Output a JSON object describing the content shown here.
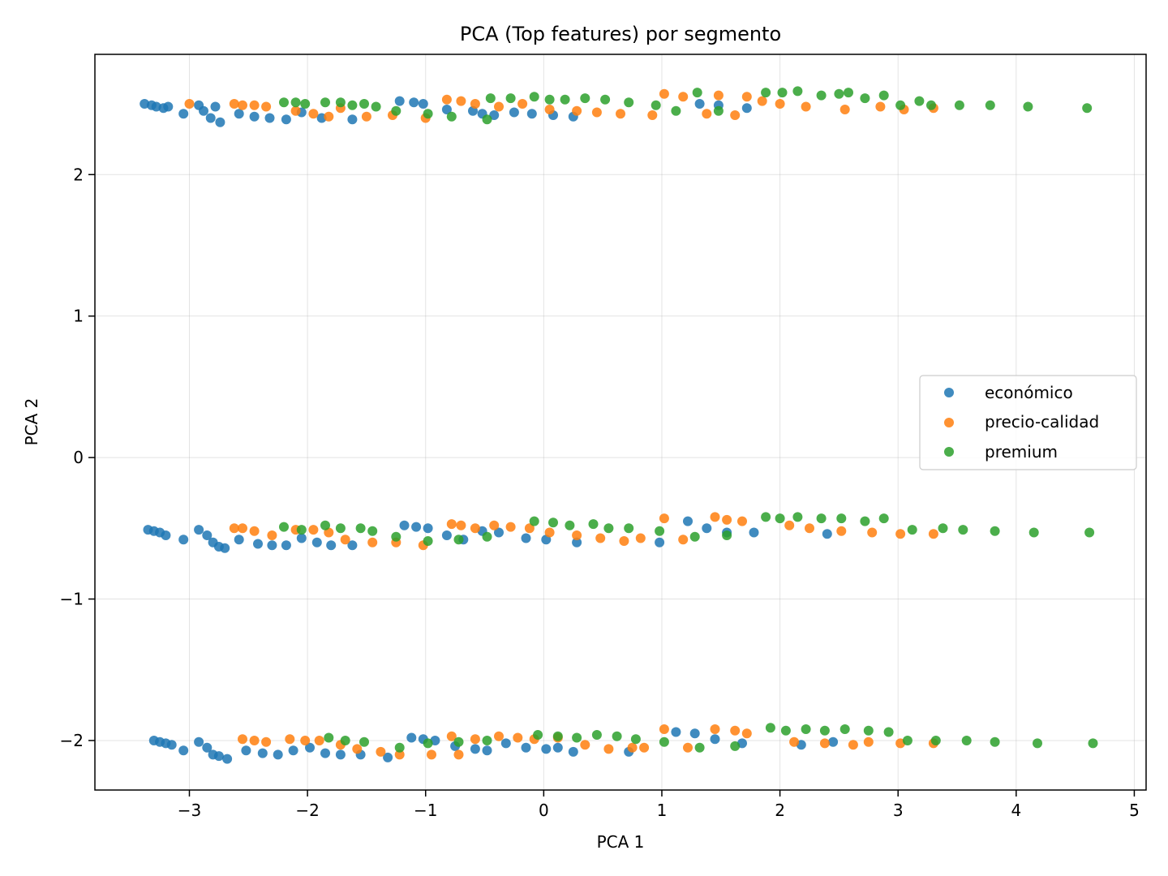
{
  "chart_data": {
    "type": "scatter",
    "title": "PCA (Top features) por segmento",
    "xlabel": "PCA 1",
    "ylabel": "PCA 2",
    "xlim": [
      -3.8,
      5.1
    ],
    "ylim": [
      -2.35,
      2.85
    ],
    "x_ticks": [
      -3,
      -2,
      -1,
      0,
      1,
      2,
      3,
      4,
      5
    ],
    "y_ticks": [
      -2,
      -1,
      0,
      1,
      2
    ],
    "x_tick_labels": [
      "−3",
      "−2",
      "−1",
      "0",
      "1",
      "2",
      "3",
      "4",
      "5"
    ],
    "y_tick_labels": [
      "−2",
      "−1",
      "0",
      "1",
      "2"
    ],
    "grid": true,
    "legend_position": "center-right",
    "series": [
      {
        "name": "económico",
        "color": "#1f77b4",
        "points": [
          [
            -3.38,
            2.5
          ],
          [
            -3.32,
            2.49
          ],
          [
            -3.28,
            2.48
          ],
          [
            -3.22,
            2.47
          ],
          [
            -3.18,
            2.48
          ],
          [
            -3.05,
            2.43
          ],
          [
            -2.92,
            2.49
          ],
          [
            -2.88,
            2.45
          ],
          [
            -2.82,
            2.4
          ],
          [
            -2.78,
            2.48
          ],
          [
            -2.74,
            2.37
          ],
          [
            -2.58,
            2.43
          ],
          [
            -2.45,
            2.41
          ],
          [
            -2.32,
            2.4
          ],
          [
            -2.18,
            2.39
          ],
          [
            -2.05,
            2.44
          ],
          [
            -1.88,
            2.4
          ],
          [
            -1.62,
            2.39
          ],
          [
            -1.22,
            2.52
          ],
          [
            -1.1,
            2.51
          ],
          [
            -1.02,
            2.5
          ],
          [
            -0.82,
            2.46
          ],
          [
            -0.6,
            2.45
          ],
          [
            -0.52,
            2.43
          ],
          [
            -0.42,
            2.42
          ],
          [
            -0.25,
            2.44
          ],
          [
            -0.1,
            2.43
          ],
          [
            0.08,
            2.42
          ],
          [
            0.25,
            2.41
          ],
          [
            1.32,
            2.5
          ],
          [
            1.48,
            2.49
          ],
          [
            1.72,
            2.47
          ],
          [
            -3.35,
            -0.51
          ],
          [
            -3.3,
            -0.52
          ],
          [
            -3.25,
            -0.53
          ],
          [
            -3.2,
            -0.55
          ],
          [
            -3.05,
            -0.58
          ],
          [
            -2.92,
            -0.51
          ],
          [
            -2.85,
            -0.55
          ],
          [
            -2.8,
            -0.6
          ],
          [
            -2.75,
            -0.63
          ],
          [
            -2.7,
            -0.64
          ],
          [
            -2.58,
            -0.58
          ],
          [
            -2.42,
            -0.61
          ],
          [
            -2.3,
            -0.62
          ],
          [
            -2.18,
            -0.62
          ],
          [
            -2.05,
            -0.57
          ],
          [
            -1.92,
            -0.6
          ],
          [
            -1.8,
            -0.62
          ],
          [
            -1.62,
            -0.62
          ],
          [
            -1.18,
            -0.48
          ],
          [
            -1.08,
            -0.49
          ],
          [
            -0.98,
            -0.5
          ],
          [
            -0.82,
            -0.55
          ],
          [
            -0.68,
            -0.58
          ],
          [
            -0.52,
            -0.52
          ],
          [
            -0.38,
            -0.53
          ],
          [
            -0.15,
            -0.57
          ],
          [
            0.02,
            -0.58
          ],
          [
            0.28,
            -0.6
          ],
          [
            0.98,
            -0.6
          ],
          [
            1.22,
            -0.45
          ],
          [
            1.38,
            -0.5
          ],
          [
            1.55,
            -0.53
          ],
          [
            1.78,
            -0.53
          ],
          [
            2.4,
            -0.54
          ],
          [
            -3.3,
            -2.0
          ],
          [
            -3.25,
            -2.01
          ],
          [
            -3.2,
            -2.02
          ],
          [
            -3.15,
            -2.03
          ],
          [
            -3.05,
            -2.07
          ],
          [
            -2.92,
            -2.01
          ],
          [
            -2.85,
            -2.05
          ],
          [
            -2.8,
            -2.1
          ],
          [
            -2.75,
            -2.11
          ],
          [
            -2.68,
            -2.13
          ],
          [
            -2.52,
            -2.07
          ],
          [
            -2.38,
            -2.09
          ],
          [
            -2.25,
            -2.1
          ],
          [
            -2.12,
            -2.07
          ],
          [
            -1.98,
            -2.05
          ],
          [
            -1.85,
            -2.09
          ],
          [
            -1.72,
            -2.1
          ],
          [
            -1.55,
            -2.1
          ],
          [
            -1.32,
            -2.12
          ],
          [
            -1.12,
            -1.98
          ],
          [
            -1.02,
            -1.99
          ],
          [
            -0.92,
            -2.0
          ],
          [
            -0.75,
            -2.04
          ],
          [
            -0.58,
            -2.06
          ],
          [
            -0.48,
            -2.07
          ],
          [
            -0.32,
            -2.02
          ],
          [
            -0.15,
            -2.05
          ],
          [
            0.02,
            -2.06
          ],
          [
            0.12,
            -2.05
          ],
          [
            0.25,
            -2.08
          ],
          [
            0.72,
            -2.08
          ],
          [
            1.12,
            -1.94
          ],
          [
            1.28,
            -1.95
          ],
          [
            1.45,
            -1.99
          ],
          [
            1.68,
            -2.02
          ],
          [
            2.18,
            -2.03
          ],
          [
            2.45,
            -2.01
          ]
        ]
      },
      {
        "name": "precio-calidad",
        "color": "#ff7f0e",
        "points": [
          [
            -3.0,
            2.5
          ],
          [
            -2.62,
            2.5
          ],
          [
            -2.55,
            2.49
          ],
          [
            -2.45,
            2.49
          ],
          [
            -2.35,
            2.48
          ],
          [
            -2.1,
            2.45
          ],
          [
            -1.95,
            2.43
          ],
          [
            -1.82,
            2.41
          ],
          [
            -1.72,
            2.47
          ],
          [
            -1.5,
            2.41
          ],
          [
            -1.28,
            2.42
          ],
          [
            -1.0,
            2.4
          ],
          [
            -0.82,
            2.53
          ],
          [
            -0.7,
            2.52
          ],
          [
            -0.58,
            2.5
          ],
          [
            -0.38,
            2.48
          ],
          [
            -0.18,
            2.5
          ],
          [
            0.05,
            2.46
          ],
          [
            0.28,
            2.45
          ],
          [
            0.45,
            2.44
          ],
          [
            0.65,
            2.43
          ],
          [
            0.92,
            2.42
          ],
          [
            1.02,
            2.57
          ],
          [
            1.18,
            2.55
          ],
          [
            1.38,
            2.43
          ],
          [
            1.48,
            2.56
          ],
          [
            1.62,
            2.42
          ],
          [
            1.72,
            2.55
          ],
          [
            1.85,
            2.52
          ],
          [
            2.0,
            2.5
          ],
          [
            2.22,
            2.48
          ],
          [
            2.55,
            2.46
          ],
          [
            2.85,
            2.48
          ],
          [
            3.05,
            2.46
          ],
          [
            3.3,
            2.47
          ],
          [
            -2.62,
            -0.5
          ],
          [
            -2.55,
            -0.5
          ],
          [
            -2.45,
            -0.52
          ],
          [
            -2.3,
            -0.55
          ],
          [
            -2.1,
            -0.51
          ],
          [
            -1.95,
            -0.51
          ],
          [
            -1.82,
            -0.53
          ],
          [
            -1.68,
            -0.58
          ],
          [
            -1.45,
            -0.6
          ],
          [
            -1.25,
            -0.6
          ],
          [
            -1.02,
            -0.62
          ],
          [
            -0.78,
            -0.47
          ],
          [
            -0.7,
            -0.48
          ],
          [
            -0.58,
            -0.5
          ],
          [
            -0.42,
            -0.48
          ],
          [
            -0.28,
            -0.49
          ],
          [
            -0.12,
            -0.5
          ],
          [
            0.05,
            -0.53
          ],
          [
            0.28,
            -0.55
          ],
          [
            0.48,
            -0.57
          ],
          [
            0.68,
            -0.59
          ],
          [
            0.82,
            -0.57
          ],
          [
            1.02,
            -0.43
          ],
          [
            1.18,
            -0.58
          ],
          [
            1.45,
            -0.42
          ],
          [
            1.55,
            -0.44
          ],
          [
            1.68,
            -0.45
          ],
          [
            2.08,
            -0.48
          ],
          [
            2.25,
            -0.5
          ],
          [
            2.52,
            -0.52
          ],
          [
            2.78,
            -0.53
          ],
          [
            3.02,
            -0.54
          ],
          [
            3.3,
            -0.54
          ],
          [
            -2.55,
            -1.99
          ],
          [
            -2.45,
            -2.0
          ],
          [
            -2.35,
            -2.01
          ],
          [
            -2.15,
            -1.99
          ],
          [
            -2.02,
            -2.0
          ],
          [
            -1.9,
            -2.0
          ],
          [
            -1.72,
            -2.03
          ],
          [
            -1.58,
            -2.06
          ],
          [
            -1.38,
            -2.08
          ],
          [
            -1.22,
            -2.1
          ],
          [
            -0.95,
            -2.1
          ],
          [
            -0.78,
            -1.97
          ],
          [
            -0.72,
            -2.1
          ],
          [
            -0.58,
            -1.99
          ],
          [
            -0.38,
            -1.97
          ],
          [
            -0.22,
            -1.98
          ],
          [
            -0.08,
            -1.99
          ],
          [
            0.12,
            -1.98
          ],
          [
            0.35,
            -2.03
          ],
          [
            0.55,
            -2.06
          ],
          [
            0.75,
            -2.05
          ],
          [
            0.85,
            -2.05
          ],
          [
            1.02,
            -1.92
          ],
          [
            1.22,
            -2.05
          ],
          [
            1.45,
            -1.92
          ],
          [
            1.62,
            -1.93
          ],
          [
            1.72,
            -1.95
          ],
          [
            2.12,
            -2.01
          ],
          [
            2.38,
            -2.02
          ],
          [
            2.62,
            -2.03
          ],
          [
            2.75,
            -2.01
          ],
          [
            3.02,
            -2.02
          ],
          [
            3.3,
            -2.02
          ]
        ]
      },
      {
        "name": "premium",
        "color": "#2ca02c",
        "points": [
          [
            -2.2,
            2.51
          ],
          [
            -2.1,
            2.51
          ],
          [
            -2.02,
            2.5
          ],
          [
            -1.85,
            2.51
          ],
          [
            -1.72,
            2.51
          ],
          [
            -1.62,
            2.49
          ],
          [
            -1.52,
            2.5
          ],
          [
            -1.42,
            2.48
          ],
          [
            -1.25,
            2.45
          ],
          [
            -0.98,
            2.43
          ],
          [
            -0.78,
            2.41
          ],
          [
            -0.48,
            2.39
          ],
          [
            -0.45,
            2.54
          ],
          [
            -0.28,
            2.54
          ],
          [
            -0.08,
            2.55
          ],
          [
            0.05,
            2.53
          ],
          [
            0.18,
            2.53
          ],
          [
            0.35,
            2.54
          ],
          [
            0.52,
            2.53
          ],
          [
            0.72,
            2.51
          ],
          [
            0.95,
            2.49
          ],
          [
            1.12,
            2.45
          ],
          [
            1.3,
            2.58
          ],
          [
            1.48,
            2.45
          ],
          [
            1.88,
            2.58
          ],
          [
            2.02,
            2.58
          ],
          [
            2.15,
            2.59
          ],
          [
            2.35,
            2.56
          ],
          [
            2.5,
            2.57
          ],
          [
            2.58,
            2.58
          ],
          [
            2.72,
            2.54
          ],
          [
            2.88,
            2.56
          ],
          [
            3.02,
            2.49
          ],
          [
            3.18,
            2.52
          ],
          [
            3.28,
            2.49
          ],
          [
            3.52,
            2.49
          ],
          [
            3.78,
            2.49
          ],
          [
            4.1,
            2.48
          ],
          [
            4.6,
            2.47
          ],
          [
            -2.2,
            -0.49
          ],
          [
            -2.05,
            -0.51
          ],
          [
            -1.85,
            -0.48
          ],
          [
            -1.72,
            -0.5
          ],
          [
            -1.55,
            -0.5
          ],
          [
            -1.45,
            -0.52
          ],
          [
            -1.25,
            -0.56
          ],
          [
            -0.98,
            -0.59
          ],
          [
            -0.72,
            -0.58
          ],
          [
            -0.48,
            -0.56
          ],
          [
            -0.08,
            -0.45
          ],
          [
            0.08,
            -0.46
          ],
          [
            0.22,
            -0.48
          ],
          [
            0.42,
            -0.47
          ],
          [
            0.55,
            -0.5
          ],
          [
            0.72,
            -0.5
          ],
          [
            0.98,
            -0.52
          ],
          [
            1.28,
            -0.56
          ],
          [
            1.55,
            -0.55
          ],
          [
            1.88,
            -0.42
          ],
          [
            2.0,
            -0.43
          ],
          [
            2.15,
            -0.42
          ],
          [
            2.35,
            -0.43
          ],
          [
            2.52,
            -0.43
          ],
          [
            2.72,
            -0.45
          ],
          [
            2.88,
            -0.43
          ],
          [
            3.12,
            -0.51
          ],
          [
            3.38,
            -0.5
          ],
          [
            3.55,
            -0.51
          ],
          [
            3.82,
            -0.52
          ],
          [
            4.15,
            -0.53
          ],
          [
            4.62,
            -0.53
          ],
          [
            -1.82,
            -1.98
          ],
          [
            -1.68,
            -2.0
          ],
          [
            -1.52,
            -2.01
          ],
          [
            -1.22,
            -2.05
          ],
          [
            -0.98,
            -2.02
          ],
          [
            -0.72,
            -2.01
          ],
          [
            -0.48,
            -2.0
          ],
          [
            -0.05,
            -1.96
          ],
          [
            0.12,
            -1.97
          ],
          [
            0.28,
            -1.98
          ],
          [
            0.45,
            -1.96
          ],
          [
            0.62,
            -1.97
          ],
          [
            0.78,
            -1.99
          ],
          [
            1.02,
            -2.01
          ],
          [
            1.32,
            -2.05
          ],
          [
            1.62,
            -2.04
          ],
          [
            1.92,
            -1.91
          ],
          [
            2.05,
            -1.93
          ],
          [
            2.22,
            -1.92
          ],
          [
            2.38,
            -1.93
          ],
          [
            2.55,
            -1.92
          ],
          [
            2.75,
            -1.93
          ],
          [
            2.92,
            -1.94
          ],
          [
            3.08,
            -2.0
          ],
          [
            3.32,
            -2.0
          ],
          [
            3.58,
            -2.0
          ],
          [
            3.82,
            -2.01
          ],
          [
            4.18,
            -2.02
          ],
          [
            4.65,
            -2.02
          ]
        ]
      }
    ]
  }
}
